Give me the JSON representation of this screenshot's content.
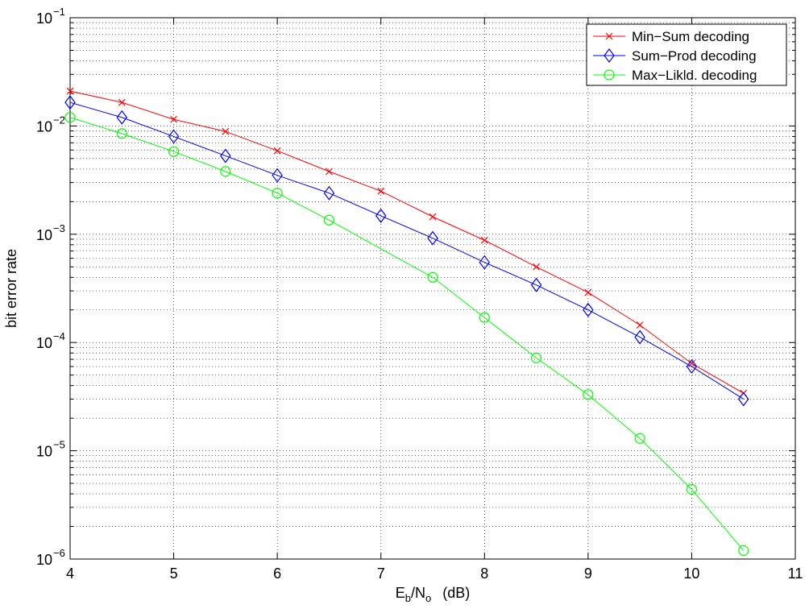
{
  "chart_data": {
    "type": "line",
    "xlabel": {
      "main": "E",
      "sub1": "b",
      "mid": "/N",
      "sub2": "o",
      "tail": "(dB)"
    },
    "ylabel": "bit error rate",
    "y_scale": "log",
    "xlim": [
      4,
      11
    ],
    "ylim": [
      1e-06,
      0.1
    ],
    "x_ticks": [
      4,
      5,
      6,
      7,
      8,
      9,
      10,
      11
    ],
    "x_tick_labels": [
      "4",
      "5",
      "6",
      "7",
      "8",
      "9",
      "10",
      "11"
    ],
    "y_ticks": [
      {
        "value": 1e-06,
        "base": "10",
        "exp": "−6"
      },
      {
        "value": 1e-05,
        "base": "10",
        "exp": "−5"
      },
      {
        "value": 0.0001,
        "base": "10",
        "exp": "−4"
      },
      {
        "value": 0.001,
        "base": "10",
        "exp": "−3"
      },
      {
        "value": 0.01,
        "base": "10",
        "exp": "−2"
      },
      {
        "value": 0.1,
        "base": "10",
        "exp": "−1"
      }
    ],
    "grid": true,
    "grid_style": "dotted",
    "legend_position": "top-right",
    "x": [
      4,
      4.5,
      5,
      5.5,
      6,
      6.5,
      7,
      7.5,
      8,
      8.5,
      9,
      9.5,
      10,
      10.5
    ],
    "series": [
      {
        "name": "Min−Sum decoding",
        "color": "#ff0000",
        "marker": "x",
        "values": [
          0.021,
          0.0165,
          0.0115,
          0.0089,
          0.0059,
          0.0038,
          0.0025,
          0.00145,
          0.00088,
          0.0005,
          0.00029,
          0.000145,
          6.4e-05,
          3.4e-05
        ]
      },
      {
        "name": "Sum−Prod decoding",
        "color": "#0000ff",
        "marker": "diamond",
        "values": [
          0.0165,
          0.012,
          0.008,
          0.0053,
          0.0035,
          0.0024,
          0.00148,
          0.00092,
          0.00055,
          0.00034,
          0.0002,
          0.000112,
          6e-05,
          3e-05
        ]
      },
      {
        "name": "Max−Likld. decoding",
        "color": "#00ff00",
        "marker": "circle",
        "values": [
          0.012,
          0.0085,
          0.0058,
          0.0038,
          0.0024,
          0.00135,
          null,
          0.0004,
          0.00017,
          7.2e-05,
          3.3e-05,
          1.3e-05,
          4.4e-06,
          1.2e-06
        ]
      }
    ]
  }
}
